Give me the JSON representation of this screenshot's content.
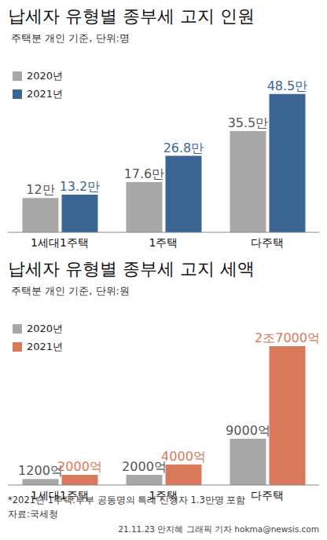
{
  "chart_data": [
    {
      "type": "bar",
      "title": "납세자 유형별 종부세 고지 인원",
      "subtitle": "주택분 개인 기준, 단위:명",
      "categories": [
        "1세대1주택",
        "1주택",
        "다주택"
      ],
      "series": [
        {
          "name": "2020년",
          "color": "#a8a8a8",
          "values": [
            120000,
            176000,
            355000
          ],
          "value_labels": [
            "12만",
            "17.6만",
            "35.5만"
          ]
        },
        {
          "name": "2021년",
          "color": "#3b6694",
          "values": [
            132000,
            268000,
            485000
          ],
          "value_labels": [
            "13.2만",
            "26.8만",
            "48.5만"
          ]
        }
      ],
      "ylim": [
        0,
        550000
      ],
      "tick_labels": "x",
      "data_labels": true,
      "legend": "upper left"
    },
    {
      "type": "bar",
      "title": "납세자 유형별 종부세 고지 세액",
      "subtitle": "주택분 개인 기준, 단위:원",
      "categories": [
        "1세대1주택",
        "1주택",
        "다주택"
      ],
      "series": [
        {
          "name": "2020년",
          "color": "#a8a8a8",
          "values": [
            120000000000,
            200000000000,
            900000000000
          ],
          "value_labels": [
            "1200억",
            "2000억",
            "9000억"
          ]
        },
        {
          "name": "2021년",
          "color": "#d9795b",
          "values": [
            200000000000,
            400000000000,
            2700000000000
          ],
          "value_labels": [
            "2000억",
            "4000억",
            "2조7000억"
          ]
        }
      ],
      "ylim": [
        0,
        3050000000000
      ],
      "tick_labels": "x",
      "data_labels": true,
      "legend": "upper left"
    }
  ],
  "footnote": "*2021년 1주택:부부 공동명의 특례 신청자 1.3만명 포함",
  "source": "자료:국세청",
  "credit": "21.11.23 안지혜 그래픽 기자 hokma@newsis.com"
}
